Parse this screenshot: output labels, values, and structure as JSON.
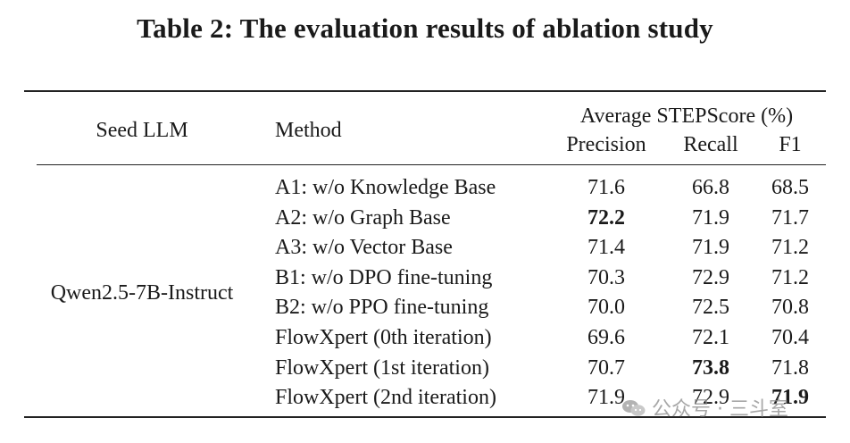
{
  "caption": "Table 2: The evaluation results of ablation study",
  "header": {
    "seed_llm": "Seed LLM",
    "method": "Method",
    "group": "Average STEPScore (%)",
    "precision": "Precision",
    "recall": "Recall",
    "f1": "F1"
  },
  "seed_model": "Qwen2.5-7B-Instruct",
  "rows": [
    {
      "method": "A1: w/o Knowledge Base",
      "precision": "71.6",
      "recall": "66.8",
      "f1": "68.5"
    },
    {
      "method": "A2: w/o Graph Base",
      "precision": "72.2",
      "recall": "71.9",
      "f1": "71.7"
    },
    {
      "method": "A3: w/o Vector Base",
      "precision": "71.4",
      "recall": "71.9",
      "f1": "71.2"
    },
    {
      "method": "B1: w/o DPO fine-tuning",
      "precision": "70.3",
      "recall": "72.9",
      "f1": "71.2"
    },
    {
      "method": "B2: w/o PPO fine-tuning",
      "precision": "70.0",
      "recall": "72.5",
      "f1": "70.8"
    },
    {
      "method": "FlowXpert (0th iteration)",
      "precision": "69.6",
      "recall": "72.1",
      "f1": "70.4"
    },
    {
      "method": "FlowXpert (1st iteration)",
      "precision": "70.7",
      "recall": "73.8",
      "f1": "71.8"
    },
    {
      "method": "FlowXpert (2nd iteration)",
      "precision": "71.9",
      "recall": "72.9",
      "f1": "71.9"
    }
  ],
  "bold_cells": [
    "rows.1.precision",
    "rows.6.recall",
    "rows.7.f1"
  ],
  "watermark": "公众号 · 三斗室"
}
